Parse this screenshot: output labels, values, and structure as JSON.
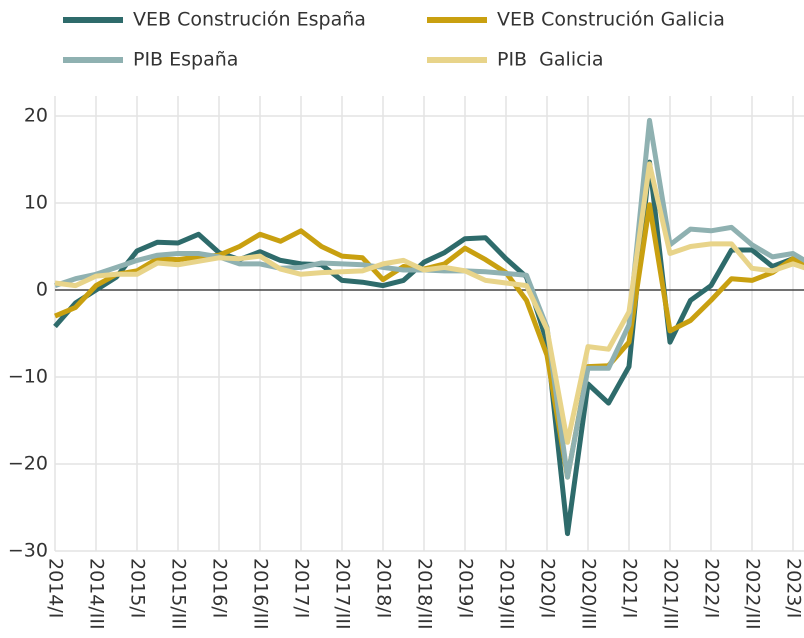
{
  "chart_data": {
    "type": "line",
    "categories": [
      "2014/I",
      null,
      "2014/III",
      null,
      "2015/I",
      null,
      "2015/III",
      null,
      "2016/I",
      null,
      "2016/III",
      null,
      "2017/I",
      null,
      "2017/III",
      null,
      "2018/I",
      null,
      "2018/III",
      null,
      "2019/I",
      null,
      "2019/III",
      null,
      "2020/I",
      null,
      "2020/III",
      null,
      "2021/I",
      null,
      "2021/III",
      null,
      "2022/I",
      null,
      "2022/III",
      null,
      "2023/I",
      null
    ],
    "series": [
      {
        "name": "VEB Construción España",
        "color": "#2e6b6b",
        "values": [
          -4.2,
          -1.5,
          0,
          1.5,
          4.5,
          5.5,
          5.4,
          6.4,
          4.3,
          3.5,
          4.4,
          3.4,
          3.0,
          2.9,
          1.1,
          0.9,
          0.5,
          1.1,
          3.2,
          4.3,
          5.9,
          6.0,
          3.6,
          1.5,
          -6,
          -28,
          -10.8,
          -13,
          -8.8,
          14.7,
          -6,
          -1.2,
          0.5,
          4.6,
          4.6,
          2.7,
          3.6,
          3.0
        ]
      },
      {
        "name": "VEB Construción Galicia",
        "color": "#c9a010",
        "values": [
          -3,
          -2,
          0.5,
          1.8,
          2.2,
          3.6,
          3.5,
          3.8,
          4.0,
          5.0,
          6.4,
          5.6,
          6.8,
          5.0,
          3.9,
          3.7,
          1.2,
          2.7,
          2.4,
          3.0,
          4.8,
          3.5,
          2.0,
          -1.2,
          -7.5,
          -21.5,
          -8.8,
          -8.7,
          -6,
          9.8,
          -4.7,
          -3.5,
          -1.2,
          1.3,
          1.1,
          2.0,
          3.6,
          2.5
        ]
      },
      {
        "name": "PIB España",
        "color": "#8fb1b1",
        "values": [
          0.5,
          1.3,
          1.8,
          2.6,
          3.4,
          4.0,
          4.2,
          4.2,
          3.8,
          3.0,
          3.0,
          2.5,
          2.6,
          3.1,
          3.0,
          2.9,
          2.6,
          2.3,
          2.3,
          2.2,
          2.2,
          2.1,
          1.9,
          1.7,
          -4.3,
          -21.5,
          -9,
          -9,
          -4,
          19.5,
          5.2,
          7.0,
          6.8,
          7.2,
          5.2,
          3.8,
          4.2,
          2.8
        ]
      },
      {
        "name": "PIB  Galicia",
        "color": "#e8d48a",
        "values": [
          0.8,
          0.5,
          1.6,
          1.8,
          1.8,
          3.1,
          2.9,
          3.3,
          3.7,
          3.6,
          3.9,
          2.4,
          1.8,
          2.0,
          2.1,
          2.2,
          3.0,
          3.4,
          2.3,
          2.6,
          2.2,
          1.1,
          0.8,
          0.5,
          -4.5,
          -17.5,
          -6.5,
          -6.8,
          -2.5,
          14.5,
          4.2,
          5.0,
          5.3,
          5.3,
          2.5,
          2.2,
          3.0,
          2.2
        ]
      }
    ],
    "ylim": [
      -30,
      22
    ],
    "yticks": [
      {
        "value": -30,
        "label": "−30"
      },
      {
        "value": -20,
        "label": "−20"
      },
      {
        "value": -10,
        "label": "−10"
      },
      0,
      10,
      20
    ],
    "grid": true
  }
}
